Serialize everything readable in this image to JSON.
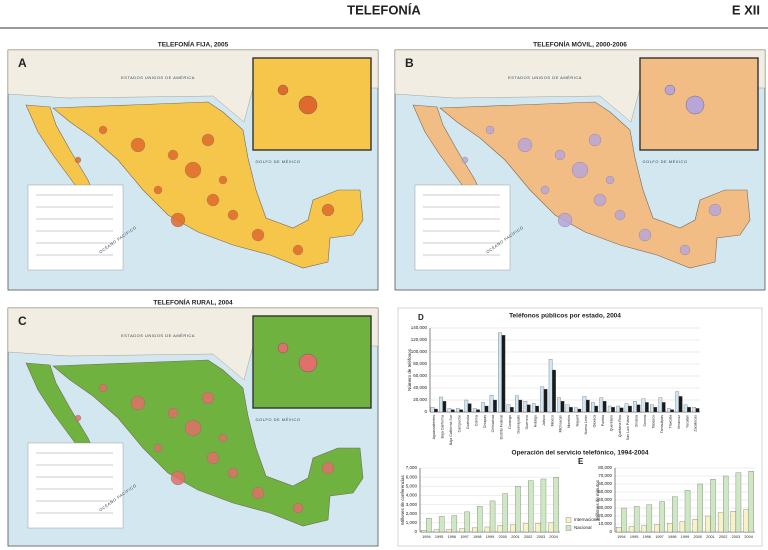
{
  "header": {
    "title": "TELEFONÍA",
    "page": "E XII"
  },
  "maps": [
    {
      "letter": "A",
      "title": "TELEFONÍA FIJA, 2005",
      "land_color": "#f6c64a",
      "accent_color": "#e06a2c",
      "labels": [
        "ESTADOS UNIDOS DE AMÉRICA",
        "GOLFO DE MÉXICO",
        "OCÉANO PACÍFICO"
      ]
    },
    {
      "letter": "B",
      "title": "TELEFONÍA MÓVIL, 2000-2006",
      "land_color": "#f2bd85",
      "accent_color": "#b9a6d8",
      "labels": [
        "ESTADOS UNIDOS DE AMÉRICA",
        "GOLFO DE MÉXICO",
        "OCÉANO PACÍFICO"
      ]
    },
    {
      "letter": "C",
      "title": "TELEFONÍA RURAL, 2004",
      "land_color": "#6fb23f",
      "accent_color": "#e0706a",
      "labels": [
        "ESTADOS UNIDOS DE AMÉRICA",
        "GOLFO DE MÉXICO",
        "OCÉANO PACÍFICO"
      ]
    }
  ],
  "chart_data": [
    {
      "type": "bar",
      "panel_label": "D",
      "title": "Teléfonos públicos por estado, 2004",
      "y_label": "Número de teléfonos",
      "categories": [
        "Aguascalientes",
        "Baja California",
        "Baja California Sur",
        "Campeche",
        "Coahuila",
        "Colima",
        "Chiapas",
        "Chihuahua",
        "Distrito Federal",
        "Durango",
        "Guanajuato",
        "Guerrero",
        "Hidalgo",
        "Jalisco",
        "México",
        "Michoacán",
        "Morelos",
        "Nayarit",
        "Nuevo León",
        "Oaxaca",
        "Puebla",
        "Querétaro",
        "Quintana Roo",
        "San Luis Potosí",
        "Sinaloa",
        "Sonora",
        "Tabasco",
        "Tamaulipas",
        "Tlaxcala",
        "Veracruz",
        "Yucatán",
        "Zacatecas"
      ],
      "series": [
        {
          "color": "#cfe6f4",
          "values": [
            8000,
            25000,
            6000,
            6000,
            20000,
            6000,
            16000,
            28000,
            132000,
            12000,
            27000,
            18000,
            14000,
            42000,
            88000,
            24000,
            12000,
            7000,
            26000,
            16000,
            24000,
            10000,
            10000,
            14000,
            18000,
            22000,
            12000,
            24000,
            6000,
            34000,
            12000,
            8000
          ]
        },
        {
          "color": "#1a1a1a",
          "values": [
            5000,
            18000,
            4000,
            4000,
            14000,
            4000,
            10000,
            20000,
            128000,
            8000,
            20000,
            12000,
            10000,
            38000,
            70000,
            18000,
            8000,
            5000,
            20000,
            10000,
            18000,
            8000,
            7000,
            10000,
            12000,
            16000,
            8000,
            16000,
            4000,
            26000,
            8000,
            6000
          ]
        }
      ],
      "ylim": [
        0,
        140000
      ],
      "yticks": [
        0,
        {
          "value": 20000,
          "label": "20,000"
        },
        {
          "value": 40000,
          "label": "40,000"
        },
        {
          "value": 60000,
          "label": "60,000"
        },
        {
          "value": 80000,
          "label": "80,000"
        },
        {
          "value": 100000,
          "label": "100,000"
        },
        {
          "value": 120000,
          "label": "120,000"
        },
        {
          "value": 140000,
          "label": "140,000"
        }
      ],
      "grid": true
    },
    {
      "type": "bar",
      "panel_label": "E",
      "title": "Operación del servicio telefónico, 1994-2004",
      "y_label": "Millones de conferencias",
      "categories": [
        "1994",
        "1995",
        "1996",
        "1997",
        "1998",
        "1999",
        "2000",
        "2001",
        "2002",
        "2003",
        "2004"
      ],
      "series": [
        {
          "name": "Internacional",
          "color": "#f7f3c4",
          "values": [
            200,
            250,
            300,
            350,
            450,
            550,
            700,
            800,
            900,
            950,
            1000
          ]
        },
        {
          "name": "Nacional",
          "color": "#cfe8c4",
          "values": [
            1500,
            1700,
            1800,
            2200,
            2800,
            3400,
            4200,
            5000,
            5600,
            5800,
            6000
          ]
        }
      ],
      "ylim": [
        0,
        7000
      ],
      "yticks": [
        0,
        {
          "value": 1000,
          "label": "1,000"
        },
        {
          "value": 2000,
          "label": "2,000"
        },
        {
          "value": 3000,
          "label": "3,000"
        },
        {
          "value": 4000,
          "label": "4,000"
        },
        {
          "value": 5000,
          "label": "5,000"
        },
        {
          "value": 6000,
          "label": "6,000"
        },
        {
          "value": 7000,
          "label": "7,000"
        }
      ],
      "grid": true
    },
    {
      "type": "bar",
      "y_label": "Millones de minutos",
      "categories": [
        "1994",
        "1995",
        "1996",
        "1997",
        "1998",
        "1999",
        "2000",
        "2001",
        "2002",
        "2003",
        "2004"
      ],
      "series": [
        {
          "color": "#f7f3c4",
          "values": [
            6000,
            7000,
            8000,
            9000,
            11000,
            13000,
            16000,
            20000,
            24000,
            26000,
            28000
          ]
        },
        {
          "color": "#cfe8c4",
          "values": [
            30000,
            32000,
            34000,
            38000,
            44000,
            52000,
            60000,
            66000,
            70000,
            74000,
            76000
          ]
        }
      ],
      "ylim": [
        0,
        80000
      ],
      "yticks": [
        0,
        {
          "value": 10000,
          "label": "10,000"
        },
        {
          "value": 20000,
          "label": "20,000"
        },
        {
          "value": 30000,
          "label": "30,000"
        },
        {
          "value": 40000,
          "label": "40,000"
        },
        {
          "value": 50000,
          "label": "50,000"
        },
        {
          "value": 60000,
          "label": "60,000"
        },
        {
          "value": 70000,
          "label": "70,000"
        },
        {
          "value": 80000,
          "label": "80,000"
        }
      ],
      "grid": true
    }
  ]
}
